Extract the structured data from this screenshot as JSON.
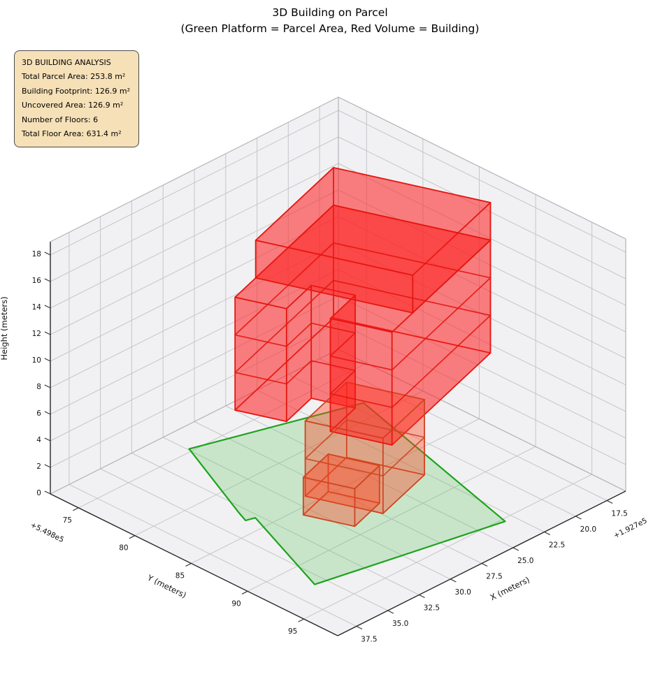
{
  "title": "3D Building on Parcel",
  "subtitle": "(Green Platform = Parcel Area, Red Volume = Building)",
  "info_box": {
    "bg_color": "#f5deb3",
    "border_color": "#4a4a4a",
    "lines": [
      "3D BUILDING ANALYSIS",
      "Total Parcel Area: 253.8 m²",
      "Building Footprint: 126.9 m²",
      "Uncovered Area: 126.9 m²",
      "Number of Floors: 6",
      "Total Floor Area: 631.4 m²"
    ]
  },
  "chart_data": {
    "type": "3d-building-volume",
    "title": "3D Building on Parcel",
    "subtitle": "(Green Platform = Parcel Area, Red Volume = Building)",
    "legend_note": "Green Platform = Parcel Area, Red Volume = Building",
    "stats": {
      "total_parcel_area_m2": 253.8,
      "building_footprint_m2": 126.9,
      "uncovered_area_m2": 126.9,
      "number_of_floors": 6,
      "total_floor_area_m2": 631.4
    },
    "axes": {
      "x": {
        "label": "X (meters)",
        "min": 16,
        "max": 39,
        "ticks": [
          17.5,
          20,
          22.5,
          25,
          27.5,
          30,
          32.5,
          35,
          37.5
        ],
        "tick_labels": [
          "17.5",
          "20.0",
          "22.5",
          "25.0",
          "27.5",
          "30.0",
          "32.5",
          "35.0",
          "37.5"
        ],
        "offset_text": "+1.927e5"
      },
      "y": {
        "label": "Y (meters)",
        "min": 72.5,
        "max": 98,
        "ticks": [
          75,
          80,
          85,
          90,
          95
        ],
        "tick_labels": [
          "75",
          "80",
          "85",
          "90",
          "95"
        ],
        "offset_text": "+5.498e5"
      },
      "z": {
        "label": "Height (meters)",
        "min": 0,
        "max": 19,
        "ticks": [
          0,
          2,
          4,
          6,
          8,
          10,
          12,
          14,
          16,
          18
        ],
        "tick_labels": [
          "0",
          "2",
          "4",
          "6",
          "8",
          "10",
          "12",
          "14",
          "16",
          "18"
        ]
      }
    },
    "parcel": {
      "z": 0,
      "polygon": [
        [
          29.9,
          74.7
        ],
        [
          19.3,
          78.4
        ],
        [
          23.2,
          95.3
        ],
        [
          35.8,
          92.4
        ],
        [
          32.8,
          83.8
        ],
        [
          33.4,
          83.6
        ],
        [
          33.0,
          82.5
        ]
      ],
      "fill": "rgba(90,195,90,0.27)",
      "edge": "#1ea31e"
    },
    "building": {
      "floor_height_m": 2.83,
      "parts": [
        {
          "name": "front-low-block",
          "footprint": [
            [
              30.67,
              85.69
            ],
            [
              27.82,
              84.74
            ],
            [
              26.71,
              88.05
            ],
            [
              29.55,
              89.01
            ]
          ],
          "z0": 0,
          "z1": 2.83,
          "floor_lines": [],
          "fill": "rgba(255,70,30,0.22)",
          "edge": "rgba(205,70,35,0.9)"
        },
        {
          "name": "lower-block",
          "footprint": [
            [
              29.09,
              84.11
            ],
            [
              24.35,
              82.51
            ],
            [
              22.66,
              87.54
            ],
            [
              27.4,
              89.13
            ]
          ],
          "z0": 0,
          "z1": 5.67,
          "floor_lines": [
            2.83
          ],
          "fill": "rgba(255,70,30,0.22)",
          "edge": "rgba(205,70,35,0.9)"
        },
        {
          "name": "mid-tower",
          "footprint": [
            [
              31.0,
              80.0
            ],
            [
              19.72,
              76.2
            ],
            [
              16.31,
              86.34
            ],
            [
              27.59,
              90.14
            ],
            [
              28.93,
              86.16
            ],
            [
              26.08,
              85.2
            ],
            [
              27.04,
              82.36
            ],
            [
              29.88,
              83.32
            ]
          ],
          "z0": 5.67,
          "z1": 14.17,
          "floor_lines": [
            8.5,
            11.33
          ],
          "fill": "rgba(255,30,30,0.33)",
          "edge": "rgba(228,22,16,0.9)"
        },
        {
          "name": "top-floor-block",
          "footprint": [
            [
              28.63,
              79.2
            ],
            [
              19.72,
              76.2
            ],
            [
              16.31,
              86.34
            ],
            [
              25.22,
              89.34
            ]
          ],
          "z0": 14.17,
          "z1": 17.0,
          "floor_lines": [],
          "fill": "rgba(255,30,30,0.33)",
          "edge": "rgba(228,22,16,0.9)"
        }
      ]
    },
    "style": {
      "pane_fill": "#f1f1f3",
      "grid_color": "#c6c6ca",
      "pane_edge_color": "#b4b4b8",
      "spine_color": "#262626",
      "tick_color": "#333333",
      "label_color": "#111111"
    }
  }
}
